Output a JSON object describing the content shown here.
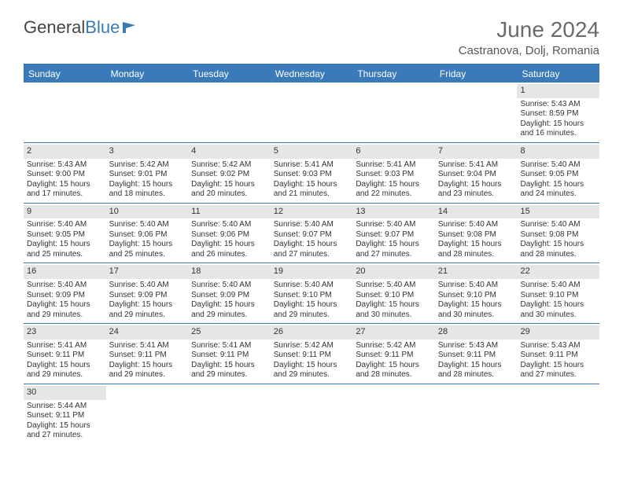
{
  "logo": {
    "text1": "General",
    "text2": "Blue"
  },
  "title": "June 2024",
  "location": "Castranova, Dolj, Romania",
  "day_head_bg": "#3a7ab8",
  "daynum_bar_bg": "#e6e6e6",
  "dayNames": [
    "Sunday",
    "Monday",
    "Tuesday",
    "Wednesday",
    "Thursday",
    "Friday",
    "Saturday"
  ],
  "weeks": [
    [
      null,
      null,
      null,
      null,
      null,
      null,
      {
        "n": "1",
        "sr": "5:43 AM",
        "ss": "8:59 PM",
        "dl": "15 hours and 16 minutes."
      }
    ],
    [
      {
        "n": "2",
        "sr": "5:43 AM",
        "ss": "9:00 PM",
        "dl": "15 hours and 17 minutes."
      },
      {
        "n": "3",
        "sr": "5:42 AM",
        "ss": "9:01 PM",
        "dl": "15 hours and 18 minutes."
      },
      {
        "n": "4",
        "sr": "5:42 AM",
        "ss": "9:02 PM",
        "dl": "15 hours and 20 minutes."
      },
      {
        "n": "5",
        "sr": "5:41 AM",
        "ss": "9:03 PM",
        "dl": "15 hours and 21 minutes."
      },
      {
        "n": "6",
        "sr": "5:41 AM",
        "ss": "9:03 PM",
        "dl": "15 hours and 22 minutes."
      },
      {
        "n": "7",
        "sr": "5:41 AM",
        "ss": "9:04 PM",
        "dl": "15 hours and 23 minutes."
      },
      {
        "n": "8",
        "sr": "5:40 AM",
        "ss": "9:05 PM",
        "dl": "15 hours and 24 minutes."
      }
    ],
    [
      {
        "n": "9",
        "sr": "5:40 AM",
        "ss": "9:05 PM",
        "dl": "15 hours and 25 minutes."
      },
      {
        "n": "10",
        "sr": "5:40 AM",
        "ss": "9:06 PM",
        "dl": "15 hours and 25 minutes."
      },
      {
        "n": "11",
        "sr": "5:40 AM",
        "ss": "9:06 PM",
        "dl": "15 hours and 26 minutes."
      },
      {
        "n": "12",
        "sr": "5:40 AM",
        "ss": "9:07 PM",
        "dl": "15 hours and 27 minutes."
      },
      {
        "n": "13",
        "sr": "5:40 AM",
        "ss": "9:07 PM",
        "dl": "15 hours and 27 minutes."
      },
      {
        "n": "14",
        "sr": "5:40 AM",
        "ss": "9:08 PM",
        "dl": "15 hours and 28 minutes."
      },
      {
        "n": "15",
        "sr": "5:40 AM",
        "ss": "9:08 PM",
        "dl": "15 hours and 28 minutes."
      }
    ],
    [
      {
        "n": "16",
        "sr": "5:40 AM",
        "ss": "9:09 PM",
        "dl": "15 hours and 29 minutes."
      },
      {
        "n": "17",
        "sr": "5:40 AM",
        "ss": "9:09 PM",
        "dl": "15 hours and 29 minutes."
      },
      {
        "n": "18",
        "sr": "5:40 AM",
        "ss": "9:09 PM",
        "dl": "15 hours and 29 minutes."
      },
      {
        "n": "19",
        "sr": "5:40 AM",
        "ss": "9:10 PM",
        "dl": "15 hours and 29 minutes."
      },
      {
        "n": "20",
        "sr": "5:40 AM",
        "ss": "9:10 PM",
        "dl": "15 hours and 30 minutes."
      },
      {
        "n": "21",
        "sr": "5:40 AM",
        "ss": "9:10 PM",
        "dl": "15 hours and 30 minutes."
      },
      {
        "n": "22",
        "sr": "5:40 AM",
        "ss": "9:10 PM",
        "dl": "15 hours and 30 minutes."
      }
    ],
    [
      {
        "n": "23",
        "sr": "5:41 AM",
        "ss": "9:11 PM",
        "dl": "15 hours and 29 minutes."
      },
      {
        "n": "24",
        "sr": "5:41 AM",
        "ss": "9:11 PM",
        "dl": "15 hours and 29 minutes."
      },
      {
        "n": "25",
        "sr": "5:41 AM",
        "ss": "9:11 PM",
        "dl": "15 hours and 29 minutes."
      },
      {
        "n": "26",
        "sr": "5:42 AM",
        "ss": "9:11 PM",
        "dl": "15 hours and 29 minutes."
      },
      {
        "n": "27",
        "sr": "5:42 AM",
        "ss": "9:11 PM",
        "dl": "15 hours and 28 minutes."
      },
      {
        "n": "28",
        "sr": "5:43 AM",
        "ss": "9:11 PM",
        "dl": "15 hours and 28 minutes."
      },
      {
        "n": "29",
        "sr": "5:43 AM",
        "ss": "9:11 PM",
        "dl": "15 hours and 27 minutes."
      }
    ],
    [
      {
        "n": "30",
        "sr": "5:44 AM",
        "ss": "9:11 PM",
        "dl": "15 hours and 27 minutes."
      },
      null,
      null,
      null,
      null,
      null,
      null
    ]
  ],
  "labels": {
    "sunrise": "Sunrise:",
    "sunset": "Sunset:",
    "daylight": "Daylight:"
  }
}
